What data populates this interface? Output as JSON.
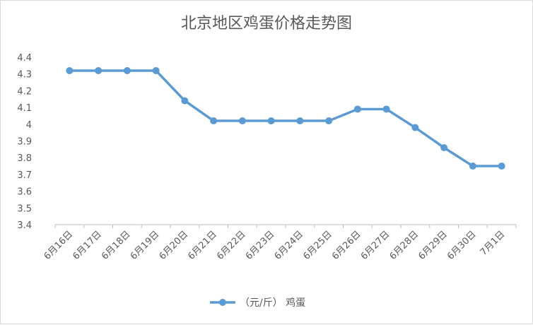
{
  "chart_data": {
    "type": "line",
    "title": "北京地区鸡蛋价格走势图",
    "categories": [
      "6月16日",
      "6月17日",
      "6月18日",
      "6月19日",
      "6月20日",
      "6月21日",
      "6月22日",
      "6月23日",
      "6月24日",
      "6月25日",
      "6月26日",
      "6月27日",
      "6月28日",
      "6月29日",
      "6月30日",
      "7月1日"
    ],
    "series": [
      {
        "name": "（元/斤） 鸡蛋",
        "values": [
          4.32,
          4.32,
          4.32,
          4.32,
          4.14,
          4.02,
          4.02,
          4.02,
          4.02,
          4.02,
          4.09,
          4.09,
          3.98,
          3.86,
          3.75,
          3.75
        ],
        "color": "#5b9bd5"
      }
    ],
    "yticks": [
      "3.4",
      "3.5",
      "3.6",
      "3.7",
      "3.8",
      "3.9",
      "4",
      "4.1",
      "4.2",
      "4.3",
      "4.4"
    ],
    "ylim": [
      3.4,
      4.4
    ],
    "grid": false,
    "legend": "bottom"
  }
}
